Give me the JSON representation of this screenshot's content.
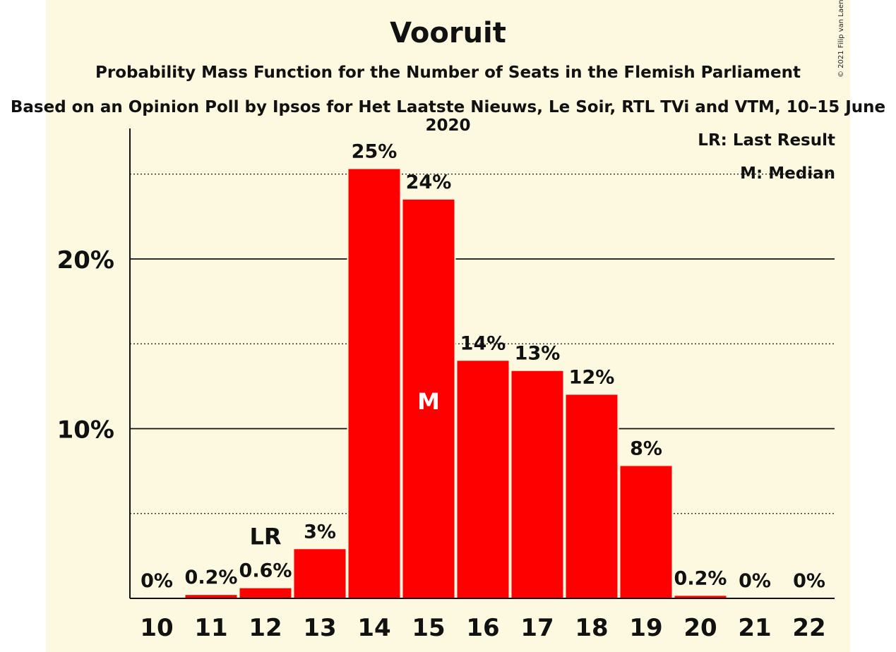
{
  "chart_data": {
    "type": "bar",
    "title": "Vooruit",
    "subtitle": "Probability Mass Function for the Number of Seats in the Flemish Parliament",
    "source": "Based on an Opinion Poll by Ipsos for Het Laatste Nieuws, Le Soir, RTL TVi and VTM, 10–15 June 2020",
    "copyright": "© 2021 Filip van Laenen",
    "categories": [
      "10",
      "11",
      "12",
      "13",
      "14",
      "15",
      "16",
      "17",
      "18",
      "19",
      "20",
      "21",
      "22"
    ],
    "values": [
      0,
      0.2,
      0.6,
      2.9,
      25.3,
      23.5,
      14.0,
      13.4,
      12.0,
      7.8,
      0.15,
      0,
      0
    ],
    "value_labels": [
      "0%",
      "0.2%",
      "0.6%",
      "3%",
      "25%",
      "24%",
      "14%",
      "13%",
      "12%",
      "8%",
      "0.2%",
      "0%",
      "0%"
    ],
    "ylim": [
      0,
      27.5
    ],
    "yticks": [
      10,
      20
    ],
    "ytick_labels": [
      "10%",
      "20%"
    ],
    "dotted_gridlines": [
      5,
      15,
      25
    ],
    "last_result_category": "12",
    "last_result_label": "LR",
    "median_category": "15",
    "median_label": "M",
    "legend": {
      "last_result": "LR: Last Result",
      "median": "M: Median",
      "placement": "top-right"
    },
    "colors": {
      "bar": "#ff0000",
      "background": "#fdf9e1",
      "text": "#111111",
      "median_label": "#ffffff"
    }
  }
}
